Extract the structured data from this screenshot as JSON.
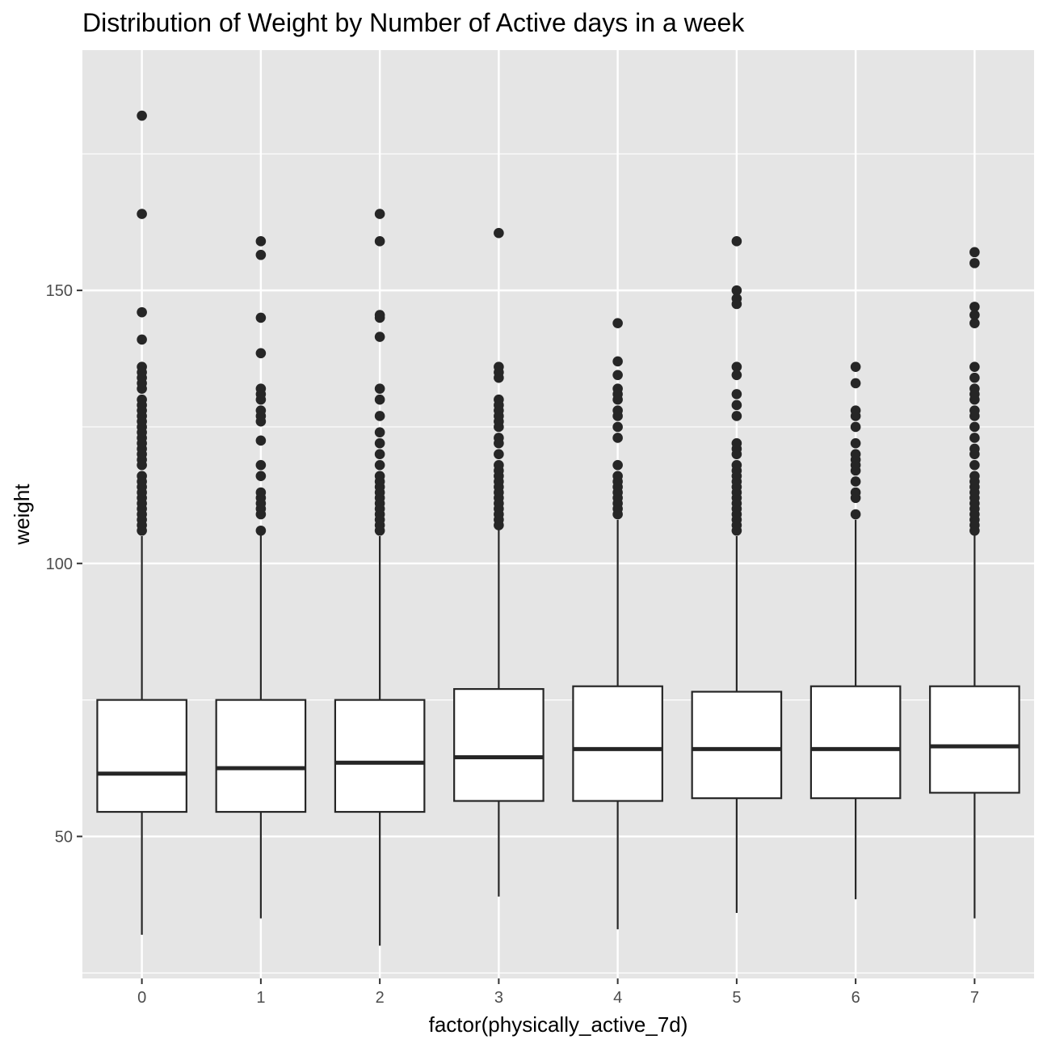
{
  "chart_data": {
    "type": "boxplot",
    "title": "Distribution of Weight by Number of Active days in a week",
    "xlabel": "factor(physically_active_7d)",
    "ylabel": "weight",
    "ylim": [
      24,
      194
    ],
    "y_ticks": [
      50,
      100,
      150
    ],
    "y_tick_labels": [
      "50",
      "100",
      "150"
    ],
    "categories": [
      "0",
      "1",
      "2",
      "3",
      "4",
      "5",
      "6",
      "7"
    ],
    "grid": true,
    "legend": "none",
    "colors": {
      "panel_background": "#e5e5e5",
      "grid_line": "#ffffff",
      "box_fill": "#ffffff",
      "box_stroke": "#262626",
      "outlier": "#262626",
      "tick_label": "#4d4d4d",
      "text": "#000000"
    },
    "boxes": [
      {
        "category": "0",
        "lower_whisker": 32,
        "q1": 54.5,
        "median": 61.5,
        "q3": 75,
        "upper_whisker": 105,
        "outliers": [
          106,
          107,
          108,
          109,
          110,
          111,
          112,
          113,
          114,
          115,
          116,
          118,
          119,
          120,
          121,
          122,
          123,
          124,
          125,
          126,
          127,
          128,
          129,
          130,
          132,
          133,
          134,
          135,
          136,
          141,
          146,
          164,
          182
        ]
      },
      {
        "category": "1",
        "lower_whisker": 35,
        "q1": 54.5,
        "median": 62.5,
        "q3": 75,
        "upper_whisker": 106,
        "outliers": [
          106,
          109,
          110,
          111,
          112,
          113,
          116,
          118,
          122.5,
          126,
          127,
          128,
          130,
          131,
          132,
          138.5,
          145,
          156.5,
          159
        ]
      },
      {
        "category": "2",
        "lower_whisker": 30,
        "q1": 54.5,
        "median": 63.5,
        "q3": 75,
        "upper_whisker": 105,
        "outliers": [
          106,
          107,
          108,
          109,
          110,
          111,
          112,
          113,
          114,
          115,
          116,
          118,
          120,
          122,
          124,
          127,
          130,
          132,
          141.5,
          145,
          145.5,
          159,
          164
        ]
      },
      {
        "category": "3",
        "lower_whisker": 39,
        "q1": 56.5,
        "median": 64.5,
        "q3": 77,
        "upper_whisker": 107,
        "outliers": [
          107,
          108,
          109,
          110,
          111,
          112,
          113,
          114,
          115,
          116,
          117,
          118,
          120,
          122,
          123,
          125,
          126,
          127,
          128,
          129,
          130,
          134,
          135,
          136,
          160.5
        ]
      },
      {
        "category": "4",
        "lower_whisker": 33,
        "q1": 56.5,
        "median": 66,
        "q3": 77.5,
        "upper_whisker": 108,
        "outliers": [
          109,
          110,
          111,
          112,
          113,
          114,
          115,
          116,
          118,
          123,
          125,
          127,
          128,
          130,
          131,
          132,
          134.5,
          137,
          144
        ]
      },
      {
        "category": "5",
        "lower_whisker": 36,
        "q1": 57,
        "median": 66,
        "q3": 76.5,
        "upper_whisker": 105,
        "outliers": [
          106,
          107,
          108,
          109,
          110,
          111,
          112,
          113,
          114,
          115,
          116,
          117,
          118,
          120,
          121,
          122,
          127,
          129,
          131,
          134.5,
          136,
          147.5,
          148.5,
          150,
          159
        ]
      },
      {
        "category": "6",
        "lower_whisker": 38.5,
        "q1": 57,
        "median": 66,
        "q3": 77.5,
        "upper_whisker": 108,
        "outliers": [
          109,
          112,
          113,
          115,
          117,
          118,
          119,
          120,
          122,
          125,
          127,
          128,
          133,
          136
        ]
      },
      {
        "category": "7",
        "lower_whisker": 35,
        "q1": 58,
        "median": 66.5,
        "q3": 77.5,
        "upper_whisker": 106,
        "outliers": [
          106,
          107,
          108,
          109,
          110,
          111,
          112,
          113,
          114,
          115,
          116,
          118,
          120,
          121,
          123,
          125,
          127,
          128,
          130,
          131,
          132,
          134,
          136,
          144,
          145.5,
          147,
          155,
          157
        ]
      }
    ]
  }
}
